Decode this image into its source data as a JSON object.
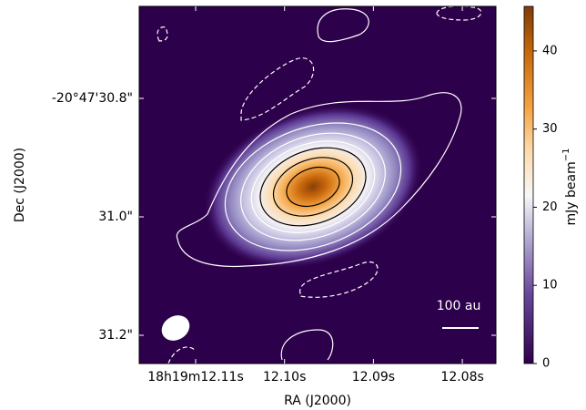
{
  "chart_data": {
    "type": "image",
    "xlabel": "RA (J2000)",
    "ylabel": "Dec (J2000)",
    "xtick_labels": [
      "18h19m12.11s",
      "12.10s",
      "12.09s",
      "12.08s"
    ],
    "ytick_labels": [
      "-20°47'30.8\"",
      "31.0\"",
      "31.2\""
    ],
    "scalebar_label": "100 au",
    "colorbar_label": "mJy beam",
    "colorbar_label_exponent": "−1",
    "clim": [
      0,
      45.7
    ],
    "cticks": [
      0,
      10,
      20,
      30,
      40
    ]
  }
}
